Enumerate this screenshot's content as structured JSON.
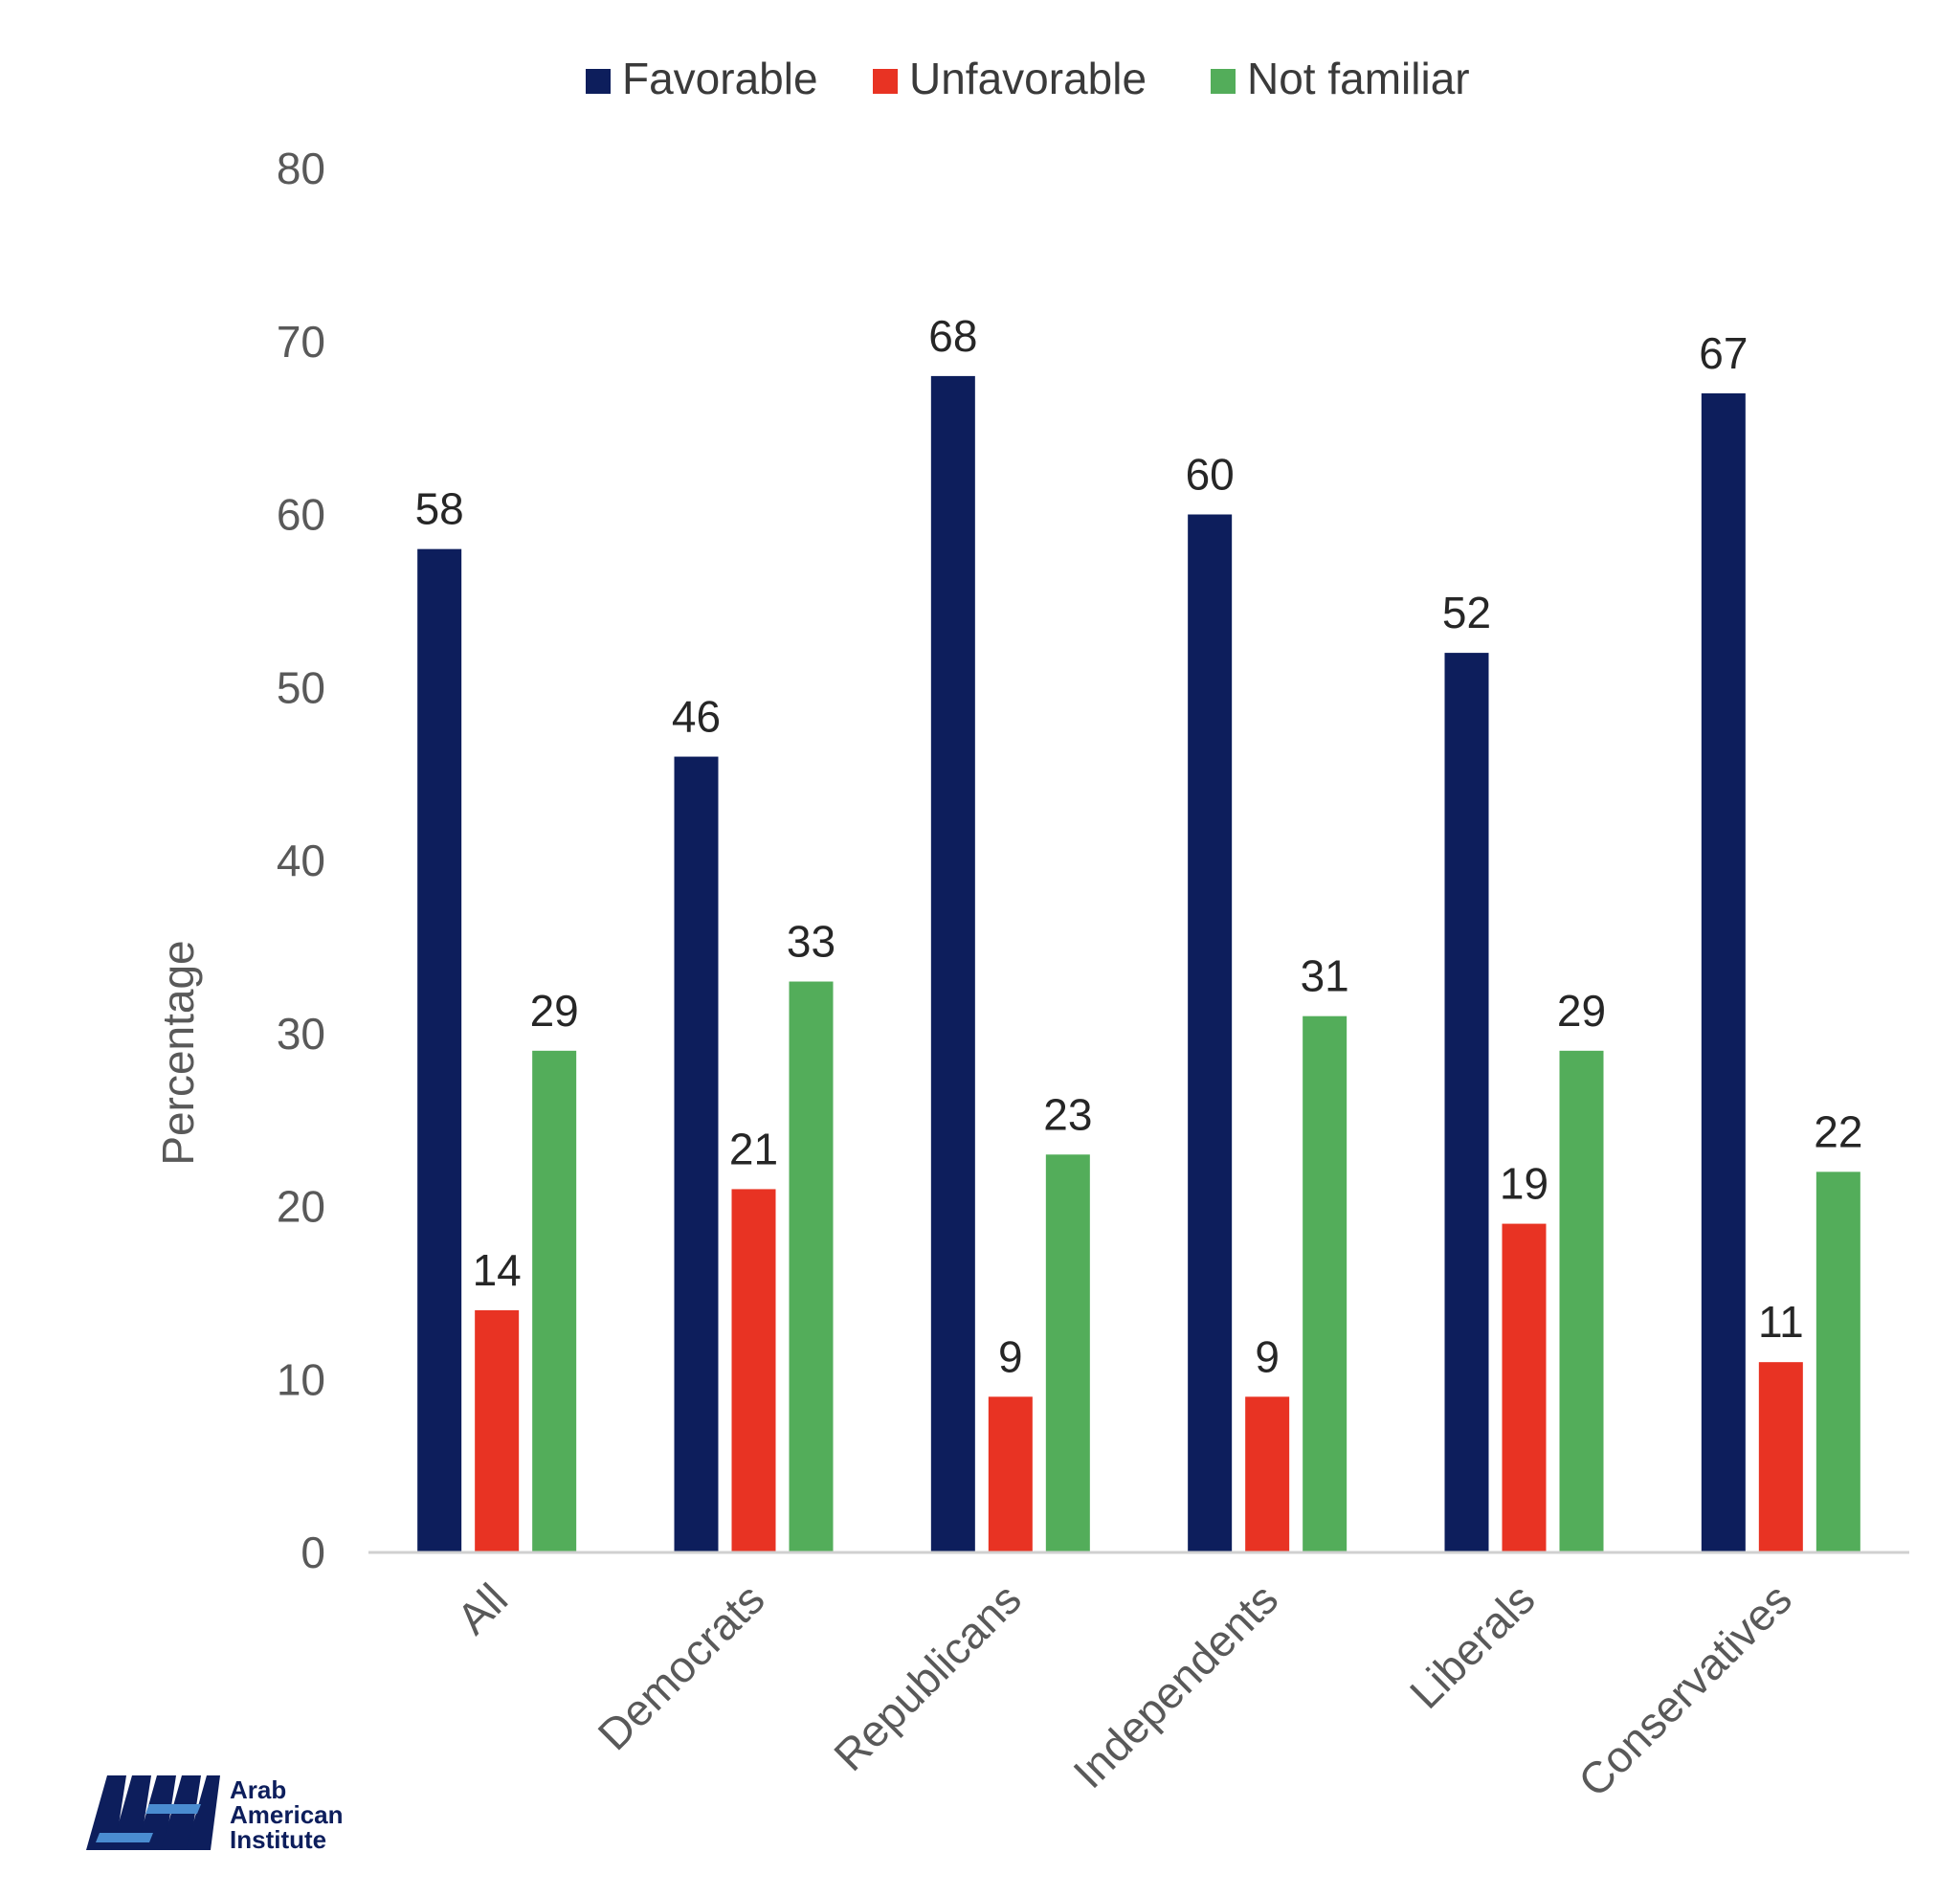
{
  "chart_data": {
    "type": "bar",
    "ylabel": "Percentage",
    "ylim": [
      0,
      80
    ],
    "yticks": [
      0,
      10,
      20,
      30,
      40,
      50,
      60,
      70,
      80
    ],
    "categories": [
      "All",
      "Democrats",
      "Republicans",
      "Independents",
      "Liberals",
      "Conservatives"
    ],
    "series": [
      {
        "name": "Favorable",
        "color": "#0d1e5c",
        "values": [
          58,
          46,
          68,
          60,
          52,
          67
        ]
      },
      {
        "name": "Unfavorable",
        "color": "#e83323",
        "values": [
          14,
          21,
          9,
          9,
          19,
          11
        ]
      },
      {
        "name": "Not familiar",
        "color": "#53ad5a",
        "values": [
          29,
          33,
          23,
          31,
          29,
          22
        ]
      }
    ],
    "legend_position": "top-center",
    "grid": false,
    "data_labels": true
  },
  "logo": {
    "lines": [
      "Arab",
      "American",
      "Institute"
    ]
  }
}
